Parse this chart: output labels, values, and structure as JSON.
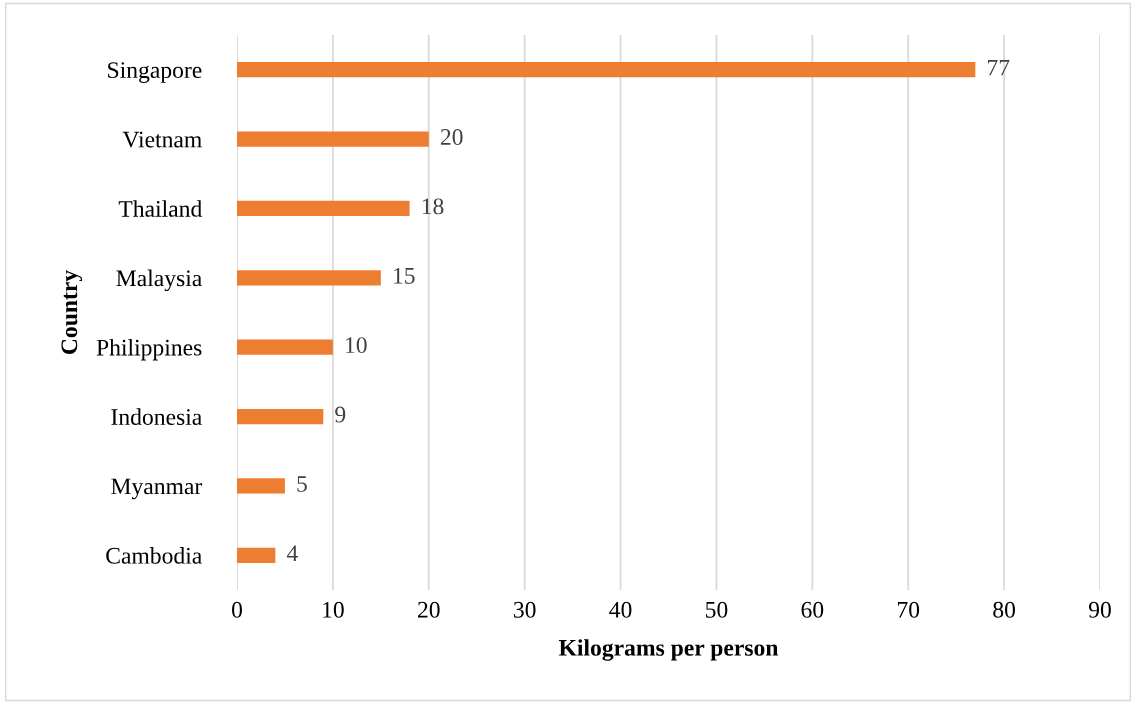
{
  "chart_data": {
    "type": "bar",
    "orientation": "horizontal",
    "xlabel": "Kilograms per person",
    "ylabel": "Country",
    "categories": [
      "Singapore",
      "Vietnam",
      "Thailand",
      "Malaysia",
      "Philippines",
      "Indonesia",
      "Myanmar",
      "Cambodia"
    ],
    "values": [
      77,
      20,
      18,
      15,
      10,
      9,
      5,
      4
    ],
    "color": "#ed7d31",
    "xlim": [
      0,
      90
    ],
    "xticks": [
      0,
      10,
      20,
      30,
      40,
      50,
      60,
      70,
      80,
      90
    ],
    "grid": "x",
    "data_labels": true
  }
}
